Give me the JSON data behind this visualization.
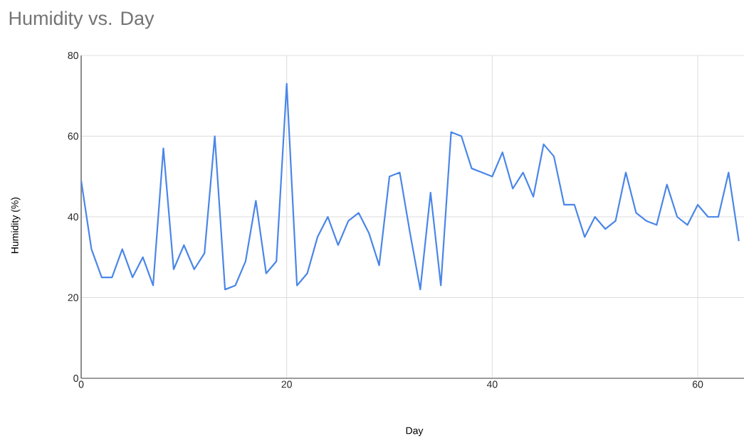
{
  "chart_data": {
    "type": "line",
    "title": "Humidity vs. Day",
    "xlabel": "Day",
    "ylabel": "Humidity (%)",
    "x": [
      0,
      1,
      2,
      3,
      4,
      5,
      6,
      7,
      8,
      9,
      10,
      11,
      12,
      13,
      14,
      15,
      16,
      17,
      18,
      19,
      20,
      21,
      22,
      23,
      24,
      25,
      26,
      27,
      28,
      29,
      30,
      31,
      32,
      33,
      34,
      35,
      36,
      37,
      38,
      39,
      40,
      41,
      42,
      43,
      44,
      45,
      46,
      47,
      48,
      49,
      50,
      51,
      52,
      53,
      54,
      55,
      56,
      57,
      58,
      59,
      60,
      61,
      62,
      63,
      64
    ],
    "series": [
      {
        "color": "#4a86e8",
        "values": [
          49,
          32,
          25,
          25,
          32,
          25,
          30,
          23,
          57,
          27,
          33,
          27,
          31,
          60,
          22,
          23,
          29,
          44,
          26,
          29,
          73,
          23,
          26,
          35,
          40,
          33,
          39,
          41,
          36,
          28,
          50,
          51,
          36,
          22,
          46,
          23,
          61,
          60,
          52,
          51,
          50,
          56,
          47,
          51,
          45,
          58,
          55,
          43,
          43,
          35,
          40,
          37,
          39,
          51,
          41,
          39,
          38,
          48,
          40,
          38,
          43,
          40,
          40,
          51,
          34
        ]
      }
    ],
    "xlim": [
      0,
      64.5
    ],
    "ylim": [
      0,
      80
    ],
    "xticks": [
      0,
      20,
      40,
      60
    ],
    "yticks": [
      0,
      20,
      40,
      60,
      80
    ],
    "grid": true,
    "marker": "none",
    "line_style": "solid"
  }
}
